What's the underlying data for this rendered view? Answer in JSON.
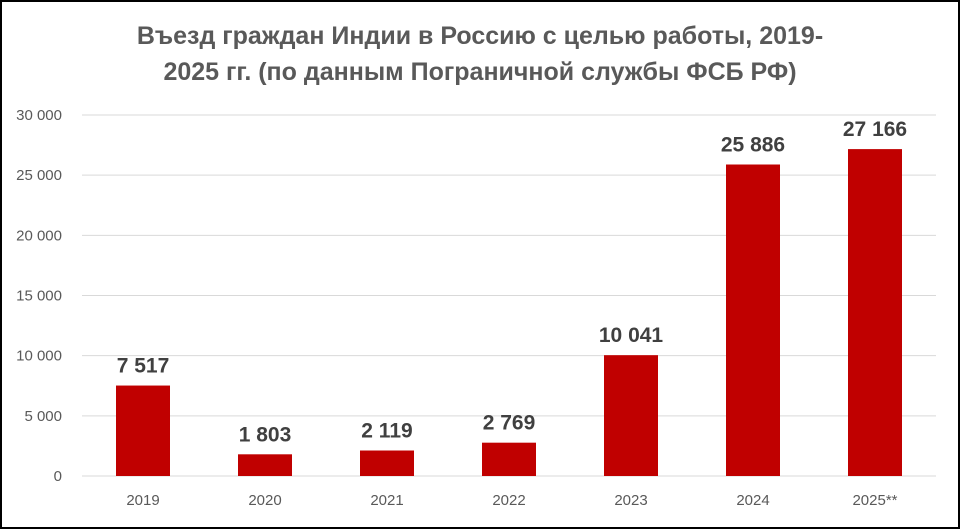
{
  "title_lines": [
    "Въезд граждан Индии в Россию с целью работы, 2019-",
    "2025 гг. (по данным Пограничной службы ФСБ РФ)"
  ],
  "chart_data": {
    "type": "bar",
    "title": "Въезд граждан Индии в Россию с целью работы, 2019-2025 гг. (по данным Пограничной службы ФСБ РФ)",
    "categories": [
      "2019",
      "2020",
      "2021",
      "2022",
      "2023",
      "2024",
      "2025**"
    ],
    "values": [
      7517,
      1803,
      2119,
      2769,
      10041,
      25886,
      27166
    ],
    "value_labels": [
      "7 517",
      "1 803",
      "2 119",
      "2 769",
      "10 041",
      "25 886",
      "27 166"
    ],
    "ylim": [
      0,
      30000
    ],
    "yticks": [
      0,
      5000,
      10000,
      15000,
      20000,
      25000,
      30000
    ],
    "ytick_labels": [
      "0",
      "5 000",
      "10 000",
      "15 000",
      "20 000",
      "25 000",
      "30 000"
    ],
    "xlabel": "",
    "ylabel": "",
    "grid": true,
    "legend": "none",
    "bar_color": "#C00000",
    "grid_color": "#D9D9D9"
  }
}
